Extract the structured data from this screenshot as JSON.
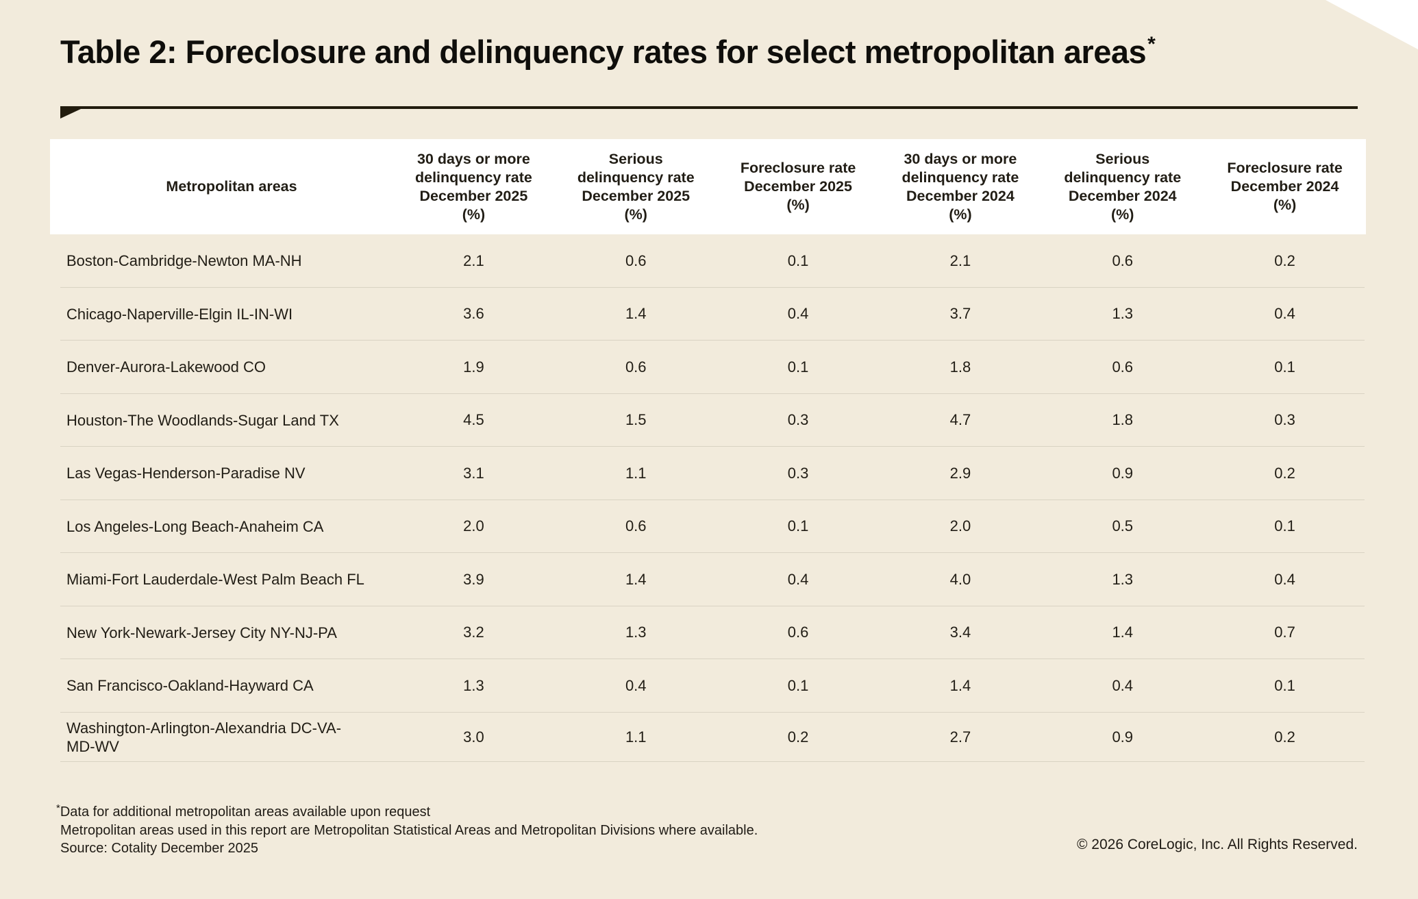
{
  "page": {
    "title": "Table 2: Foreclosure and delinquency rates for select metropolitan areas",
    "title_superscript": "*",
    "footnote_marker": "*",
    "footnote_line1": "Data for additional metropolitan areas available upon request",
    "footnote_line2": "Metropolitan areas used in this report are Metropolitan Statistical Areas and Metropolitan Divisions where available.",
    "source_line": "Source: Cotality December 2025",
    "copyright": "© 2026 CoreLogic, Inc. All Rights Reserved.",
    "colors": {
      "background": "#f2ebdc",
      "header_background": "#ffffff",
      "text": "#211d15",
      "title_rule": "#221c0e",
      "row_divider": "#d9d3c3"
    }
  },
  "chart_data": {
    "type": "table",
    "title": "Table 2: Foreclosure and delinquency rates for select metropolitan areas*",
    "columns": [
      "Metropolitan areas",
      "30 days or more delinquency rate December 2025 (%)",
      "Serious delinquency rate December 2025 (%)",
      "Foreclosure rate December 2025 (%)",
      "30 days or more delinquency rate December 2024 (%)",
      "Serious delinquency rate December 2024 (%)",
      "Foreclosure rate December 2024 (%)"
    ],
    "header_lines": {
      "col1": "Metropolitan areas",
      "col2": "30 days or more\ndelinquency rate\nDecember 2025\n(%)",
      "col3": "Serious\ndelinquency rate\nDecember 2025\n(%)",
      "col4": "Foreclosure rate\nDecember 2025\n(%)",
      "col5": "30 days or more\ndelinquency rate\nDecember 2024\n(%)",
      "col6": "Serious\ndelinquency rate\nDecember 2024\n(%)",
      "col7": "Foreclosure rate\nDecember 2024\n(%)"
    },
    "rows": [
      {
        "name": "Boston-Cambridge-Newton MA-NH",
        "values": [
          "2.1",
          "0.6",
          "0.1",
          "2.1",
          "0.6",
          "0.2"
        ]
      },
      {
        "name": "Chicago-Naperville-Elgin IL-IN-WI",
        "values": [
          "3.6",
          "1.4",
          "0.4",
          "3.7",
          "1.3",
          "0.4"
        ]
      },
      {
        "name": "Denver-Aurora-Lakewood CO",
        "values": [
          "1.9",
          "0.6",
          "0.1",
          "1.8",
          "0.6",
          "0.1"
        ]
      },
      {
        "name": "Houston-The Woodlands-Sugar Land TX",
        "values": [
          "4.5",
          "1.5",
          "0.3",
          "4.7",
          "1.8",
          "0.3"
        ]
      },
      {
        "name": "Las Vegas-Henderson-Paradise NV",
        "values": [
          "3.1",
          "1.1",
          "0.3",
          "2.9",
          "0.9",
          "0.2"
        ]
      },
      {
        "name": "Los Angeles-Long Beach-Anaheim CA",
        "values": [
          "2.0",
          "0.6",
          "0.1",
          "2.0",
          "0.5",
          "0.1"
        ]
      },
      {
        "name": "Miami-Fort Lauderdale-West Palm Beach FL",
        "values": [
          "3.9",
          "1.4",
          "0.4",
          "4.0",
          "1.3",
          "0.4"
        ]
      },
      {
        "name": "New York-Newark-Jersey City NY-NJ-PA",
        "values": [
          "3.2",
          "1.3",
          "0.6",
          "3.4",
          "1.4",
          "0.7"
        ]
      },
      {
        "name": "San Francisco-Oakland-Hayward CA",
        "values": [
          "1.3",
          "0.4",
          "0.1",
          "1.4",
          "0.4",
          "0.1"
        ]
      },
      {
        "name": "Washington-Arlington-Alexandria DC-VA-MD-WV",
        "values": [
          "3.0",
          "1.1",
          "0.2",
          "2.7",
          "0.9",
          "0.2"
        ]
      }
    ]
  }
}
